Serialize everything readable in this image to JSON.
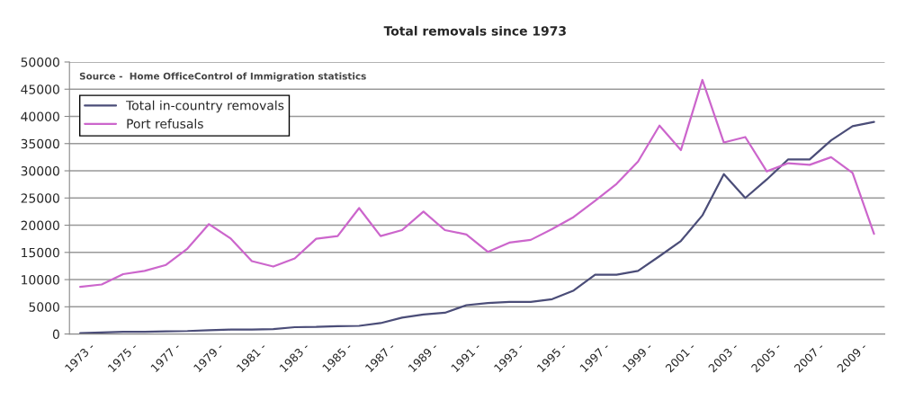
{
  "chart_data": {
    "type": "line",
    "title": "Total removals since 1973",
    "categories": [
      "1973 -",
      null,
      "1975 -",
      null,
      "1977 -",
      null,
      "1979 -",
      null,
      "1981 -",
      null,
      "1983 -",
      null,
      "1985 -",
      null,
      "1987 -",
      null,
      "1989 -",
      null,
      "1991 -",
      null,
      "1993 -",
      null,
      "1995 -",
      null,
      "1997 -",
      null,
      "1999 -",
      null,
      "2001 -",
      null,
      "2003 -",
      null,
      "2005 -",
      null,
      "2007 -",
      null,
      "2009 -",
      null
    ],
    "series": [
      {
        "name": "Total in-country removals",
        "color": "#4b4d78",
        "values": [
          150,
          280,
          400,
          400,
          500,
          550,
          700,
          800,
          800,
          900,
          1250,
          1300,
          1450,
          1500,
          2000,
          3000,
          3600,
          3900,
          5300,
          5700,
          5900,
          5900,
          6400,
          8000,
          10900,
          10900,
          11600,
          14300,
          17100,
          21800,
          29400,
          25000,
          28400,
          32100,
          32100,
          35600,
          38200,
          39000
        ]
      },
      {
        "name": "Port refusals",
        "color": "#cc66cc",
        "values": [
          8650,
          9100,
          11000,
          11600,
          12700,
          15700,
          20200,
          17600,
          13400,
          12400,
          13900,
          17500,
          18000,
          23150,
          18000,
          19100,
          22500,
          19100,
          18300,
          15100,
          16800,
          17300,
          19300,
          21500,
          24500,
          27600,
          31700,
          38300,
          33800,
          46700,
          35200,
          36200,
          29900,
          31400,
          31100,
          32500,
          29600,
          18400
        ]
      }
    ],
    "ylim": [
      0,
      50000
    ],
    "yticks": [
      0,
      5000,
      10000,
      15000,
      20000,
      25000,
      30000,
      35000,
      40000,
      45000,
      50000
    ],
    "grid": "y",
    "legend": "top left",
    "marker": "none",
    "line_style": "solid",
    "annotations": [
      "Source -  Home OfficeControl of Immigration statistics"
    ]
  }
}
